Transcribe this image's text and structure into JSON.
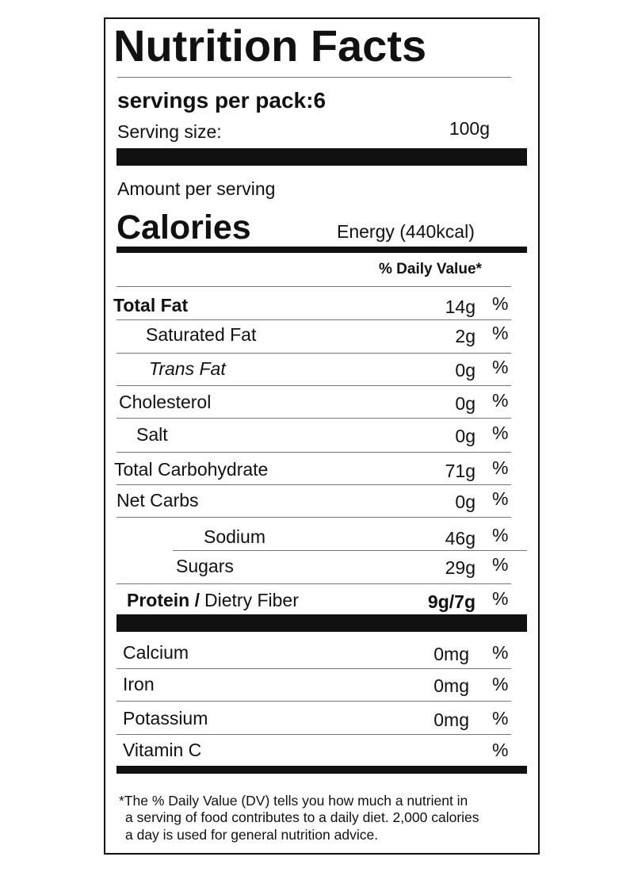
{
  "title": "Nutrition Facts",
  "servings": {
    "per_pack": "servings per pack:6",
    "size_label": "Serving size:",
    "size_value": "100g"
  },
  "amount_per_serving": "Amount per serving",
  "calories": {
    "label": "Calories",
    "energy": "Energy (440kcal)"
  },
  "daily_value_header": "% Daily Value*",
  "nutrients": [
    {
      "name": "Total Fat",
      "amount": "14g",
      "dv": "%"
    },
    {
      "name": "Saturated Fat",
      "amount": "2g",
      "dv": "%"
    },
    {
      "name": "Trans Fat",
      "amount": "0g",
      "dv": "%"
    },
    {
      "name": "Cholesterol",
      "amount": "0g",
      "dv": "%"
    },
    {
      "name": "Salt",
      "amount": "0g",
      "dv": "%"
    },
    {
      "name": "Total Carbohydrate",
      "amount": "71g",
      "dv": "%"
    },
    {
      "name": "Net Carbs",
      "amount": "0g",
      "dv": "%"
    },
    {
      "name": "Sodium",
      "amount": "46g",
      "dv": "%"
    },
    {
      "name": "Sugars",
      "amount": "29g",
      "dv": "%"
    },
    {
      "name": "Protein /",
      "detail": "Dietry Fiber",
      "amount": "9g/7g",
      "dv": "%"
    }
  ],
  "minerals": [
    {
      "name": "Calcium",
      "amount": "0mg",
      "dv": "%"
    },
    {
      "name": "Iron",
      "amount": "0mg",
      "dv": "%"
    },
    {
      "name": "Potassium",
      "amount": "0mg",
      "dv": "%"
    },
    {
      "name": "Vitamin C",
      "dv": "%"
    }
  ],
  "footnote": [
    "*The % Daily Value (DV) tells you how much a nutrient in",
    "a serving of food contributes to a daily diet. 2,000 calories",
    "a day is used for general nutrition advice."
  ]
}
